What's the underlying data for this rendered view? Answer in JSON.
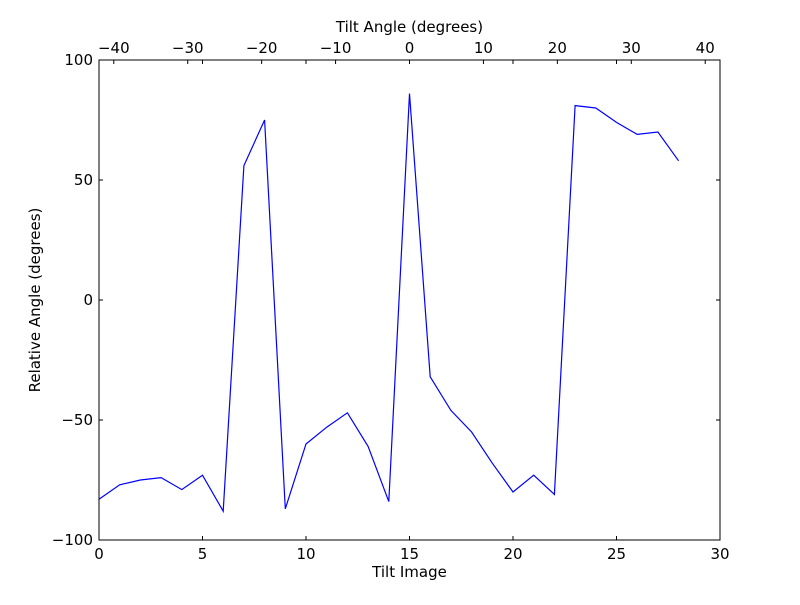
{
  "chart_data": {
    "type": "line",
    "xlabel": "Tilt Image",
    "ylabel": "Relative Angle (degrees)",
    "top_xlabel": "Tilt Angle (degrees)",
    "xlim": [
      0,
      30
    ],
    "ylim": [
      -100,
      100
    ],
    "top_xlim": [
      -42,
      42
    ],
    "grid": false,
    "x_ticks": [
      0,
      5,
      10,
      15,
      20,
      25,
      30
    ],
    "x_tick_labels": [
      "0",
      "5",
      "10",
      "15",
      "20",
      "25",
      "30"
    ],
    "y_ticks": [
      -100,
      -50,
      0,
      50,
      100
    ],
    "y_tick_labels": [
      "−100",
      "−50",
      "0",
      "50",
      "100"
    ],
    "top_x_ticks": [
      -40,
      -30,
      -20,
      -10,
      0,
      10,
      20,
      30,
      40
    ],
    "top_x_tick_labels": [
      "−40",
      "−30",
      "−20",
      "−10",
      "0",
      "10",
      "20",
      "30",
      "40"
    ],
    "series": [
      {
        "color": "#0000ff",
        "x": [
          0,
          1,
          2,
          3,
          4,
          5,
          6,
          7,
          8,
          9,
          10,
          11,
          12,
          13,
          14,
          15,
          16,
          17,
          18,
          19,
          20,
          21,
          22,
          23,
          24,
          25,
          26,
          27,
          28
        ],
        "values": [
          -83,
          -77,
          -75,
          -74,
          -79,
          -73,
          -88,
          56,
          75,
          -87,
          -60,
          -53,
          -47,
          -61,
          -84,
          86,
          -32,
          -46,
          -55,
          -68,
          -80,
          -73,
          -81,
          81,
          80,
          74,
          69,
          70,
          58
        ]
      }
    ]
  }
}
